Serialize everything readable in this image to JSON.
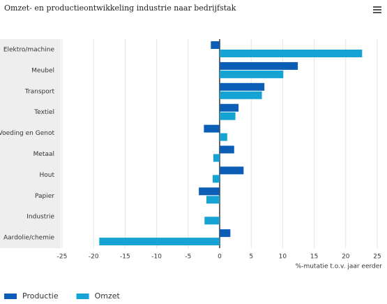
{
  "chart_data": {
    "type": "hbar",
    "title": "Omzet- en productieontwikkeling industrie naar bedrijfstak",
    "x_label": "%-mutatie t.o.v. jaar eerder",
    "categories": [
      "Elektro/machine",
      "Meubel",
      "Transport",
      "Textiel",
      "Voeding en Genot",
      "Metaal",
      "Hout",
      "Papier",
      "Industrie",
      "Aardolie/chemie"
    ],
    "series": [
      {
        "name": "Productie",
        "color": "#0b5db5",
        "values": [
          -1.4,
          12.4,
          7.1,
          3.0,
          -2.5,
          2.3,
          3.8,
          -3.3,
          null,
          1.7
        ]
      },
      {
        "name": "Omzet",
        "color": "#15a3d3",
        "values": [
          22.6,
          10.1,
          6.7,
          2.5,
          1.2,
          -1.0,
          -1.1,
          -2.1,
          -2.4,
          -19.1
        ]
      }
    ],
    "xlim": [
      -25,
      25
    ],
    "xticks": [
      -25,
      -20,
      -15,
      -10,
      -5,
      0,
      5,
      10,
      15,
      20,
      25
    ],
    "grid": true
  }
}
